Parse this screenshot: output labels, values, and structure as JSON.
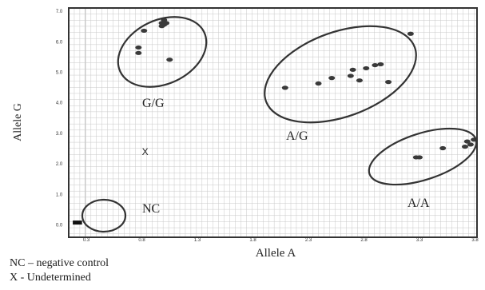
{
  "chart_data": {
    "type": "scatter",
    "xlabel": "Allele A",
    "ylabel": "Allele G",
    "xlim": [
      0,
      3.6
    ],
    "ylim": [
      0,
      7.0
    ],
    "xticks": [
      "0.3",
      "0.8",
      "1.3",
      "1.8",
      "2.3",
      "2.8",
      "3.3",
      "3.8"
    ],
    "yticks": [
      "0.0",
      "1.0",
      "2.0",
      "3.0",
      "4.0",
      "5.0",
      "6.0",
      "7.0"
    ],
    "xtick_values": [
      0.3,
      0.8,
      1.3,
      1.8,
      2.3,
      2.8,
      3.3,
      3.8
    ],
    "ytick_values": [
      0,
      1,
      2,
      3,
      4,
      5,
      6,
      7
    ],
    "grid": true,
    "marker_color": "#3a3a3a",
    "clusters": [
      {
        "label": "G/G",
        "points": [
          [
            0.82,
            6.35
          ],
          [
            0.98,
            6.5
          ],
          [
            0.98,
            6.6
          ],
          [
            1.0,
            6.55
          ],
          [
            1.0,
            6.7
          ],
          [
            1.02,
            6.6
          ],
          [
            0.77,
            5.8
          ],
          [
            0.77,
            5.62
          ],
          [
            1.05,
            5.4
          ]
        ]
      },
      {
        "label": "A/G",
        "points": [
          [
            2.09,
            4.48
          ],
          [
            2.39,
            4.62
          ],
          [
            2.51,
            4.8
          ],
          [
            2.68,
            4.87
          ],
          [
            2.7,
            5.07
          ],
          [
            2.76,
            4.72
          ],
          [
            2.82,
            5.12
          ],
          [
            2.9,
            5.22
          ],
          [
            2.95,
            5.25
          ],
          [
            3.02,
            4.67
          ],
          [
            3.22,
            6.25
          ]
        ]
      },
      {
        "label": "A/A",
        "points": [
          [
            3.27,
            2.2
          ],
          [
            3.3,
            2.2
          ],
          [
            3.51,
            2.5
          ],
          [
            3.71,
            2.55
          ],
          [
            3.73,
            2.72
          ],
          [
            3.76,
            2.62
          ],
          [
            3.79,
            2.78
          ],
          [
            3.93,
            2.8
          ],
          [
            4.01,
            2.82
          ]
        ]
      },
      {
        "label": "NC",
        "points": [
          [
            0.2,
            0.05
          ],
          [
            0.24,
            0.05
          ]
        ]
      }
    ],
    "undetermined": {
      "marker": "X",
      "point": [
        0.83,
        2.38
      ]
    }
  },
  "captions": {
    "nc": "NC – negative control",
    "x": "X - Undetermined"
  }
}
